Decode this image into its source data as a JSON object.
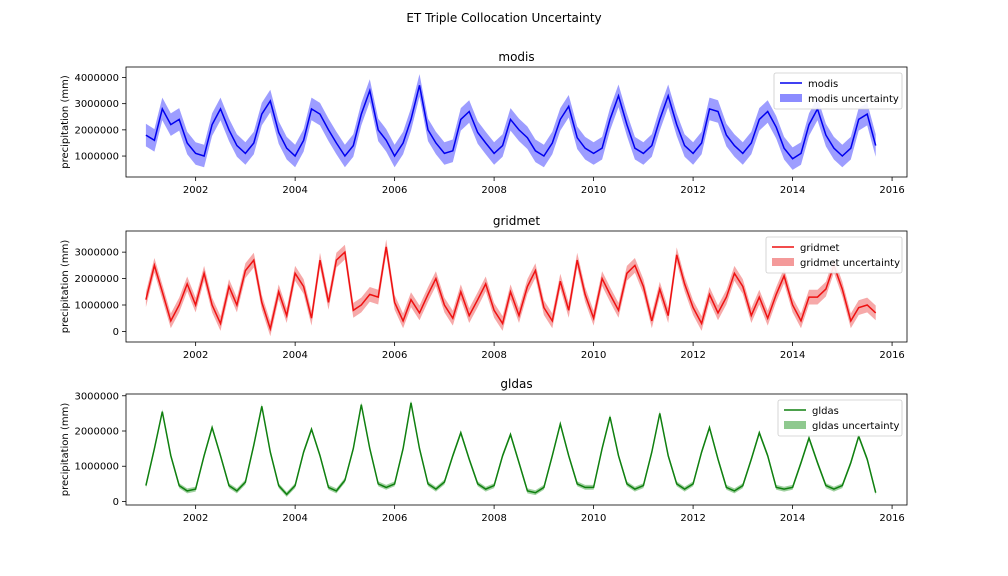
{
  "figure": {
    "title": "ET Triple Collocation Uncertainty"
  },
  "colors": {
    "modis": "#0000ee",
    "modis_band": "#8c8cff",
    "gridmet": "#ee1111",
    "gridmet_band": "#f49a9a",
    "gldas": "#108010",
    "gldas_band": "#8fc98f"
  },
  "chart_data": [
    {
      "type": "line",
      "title": "modis",
      "ylabel": "precipitation (mm)",
      "xlim": [
        2000.6,
        2016.3
      ],
      "ylim": [
        200000,
        4400000
      ],
      "yticks": [
        1000000,
        2000000,
        3000000,
        4000000
      ],
      "ytick_labels": [
        "1000000",
        "2000000",
        "3000000",
        "4000000"
      ],
      "xticks": [
        2002,
        2004,
        2006,
        2008,
        2010,
        2012,
        2014,
        2016
      ],
      "xtick_labels": [
        "2002",
        "2004",
        "2006",
        "2008",
        "2010",
        "2012",
        "2014",
        "2016"
      ],
      "legend": {
        "position": "top-right",
        "line_label": "modis",
        "band_label": "modis uncertainty"
      },
      "series": [
        {
          "name": "modis",
          "x": [
            2001.0,
            2001.17,
            2001.33,
            2001.5,
            2001.67,
            2001.83,
            2002.0,
            2002.17,
            2002.33,
            2002.5,
            2002.67,
            2002.83,
            2003.0,
            2003.17,
            2003.33,
            2003.5,
            2003.67,
            2003.83,
            2004.0,
            2004.17,
            2004.33,
            2004.5,
            2004.67,
            2004.83,
            2005.0,
            2005.17,
            2005.33,
            2005.5,
            2005.67,
            2005.83,
            2006.0,
            2006.17,
            2006.33,
            2006.5,
            2006.67,
            2006.83,
            2007.0,
            2007.17,
            2007.33,
            2007.5,
            2007.67,
            2007.83,
            2008.0,
            2008.17,
            2008.33,
            2008.5,
            2008.67,
            2008.83,
            2009.0,
            2009.17,
            2009.33,
            2009.5,
            2009.67,
            2009.83,
            2010.0,
            2010.17,
            2010.33,
            2010.5,
            2010.67,
            2010.83,
            2011.0,
            2011.17,
            2011.33,
            2011.5,
            2011.67,
            2011.83,
            2012.0,
            2012.17,
            2012.33,
            2012.5,
            2012.67,
            2012.83,
            2013.0,
            2013.17,
            2013.33,
            2013.5,
            2013.67,
            2013.83,
            2014.0,
            2014.17,
            2014.33,
            2014.5,
            2014.67,
            2014.83,
            2015.0,
            2015.17,
            2015.33,
            2015.5,
            2015.67
          ],
          "y": [
            1800000,
            1600000,
            2800000,
            2200000,
            2400000,
            1500000,
            1100000,
            1000000,
            2200000,
            2800000,
            2000000,
            1400000,
            1100000,
            1500000,
            2600000,
            3100000,
            1900000,
            1300000,
            1000000,
            1600000,
            2800000,
            2600000,
            2000000,
            1500000,
            1000000,
            1400000,
            2600000,
            3500000,
            2000000,
            1600000,
            1000000,
            1500000,
            2400000,
            3700000,
            2000000,
            1500000,
            1100000,
            1200000,
            2400000,
            2700000,
            1900000,
            1500000,
            1100000,
            1400000,
            2400000,
            2000000,
            1700000,
            1200000,
            1000000,
            1500000,
            2400000,
            2900000,
            1700000,
            1300000,
            1100000,
            1300000,
            2400000,
            3300000,
            2200000,
            1300000,
            1100000,
            1400000,
            2400000,
            3300000,
            2200000,
            1400000,
            1100000,
            1500000,
            2800000,
            2700000,
            1800000,
            1400000,
            1100000,
            1500000,
            2400000,
            2700000,
            2100000,
            1300000,
            900000,
            1100000,
            2200000,
            2800000,
            1800000,
            1300000,
            1000000,
            1300000,
            2400000,
            2600000,
            1400000
          ],
          "uncertainty": 430000
        }
      ]
    },
    {
      "type": "line",
      "title": "gridmet",
      "ylabel": "precipitation (mm)",
      "xlim": [
        2000.6,
        2016.3
      ],
      "ylim": [
        -400000,
        3800000
      ],
      "yticks": [
        0,
        1000000,
        2000000,
        3000000
      ],
      "ytick_labels": [
        "0",
        "1000000",
        "2000000",
        "3000000"
      ],
      "xticks": [
        2002,
        2004,
        2006,
        2008,
        2010,
        2012,
        2014,
        2016
      ],
      "xtick_labels": [
        "2002",
        "2004",
        "2006",
        "2008",
        "2010",
        "2012",
        "2014",
        "2016"
      ],
      "legend": {
        "position": "top-right",
        "line_label": "gridmet",
        "band_label": "gridmet uncertainty"
      },
      "series": [
        {
          "name": "gridmet",
          "x": [
            2001.0,
            2001.17,
            2001.33,
            2001.5,
            2001.67,
            2001.83,
            2002.0,
            2002.17,
            2002.33,
            2002.5,
            2002.67,
            2002.83,
            2003.0,
            2003.17,
            2003.33,
            2003.5,
            2003.67,
            2003.83,
            2004.0,
            2004.17,
            2004.33,
            2004.5,
            2004.67,
            2004.83,
            2005.0,
            2005.17,
            2005.33,
            2005.5,
            2005.67,
            2005.83,
            2006.0,
            2006.17,
            2006.33,
            2006.5,
            2006.67,
            2006.83,
            2007.0,
            2007.17,
            2007.33,
            2007.5,
            2007.67,
            2007.83,
            2008.0,
            2008.17,
            2008.33,
            2008.5,
            2008.67,
            2008.83,
            2009.0,
            2009.17,
            2009.33,
            2009.5,
            2009.67,
            2009.83,
            2010.0,
            2010.17,
            2010.33,
            2010.5,
            2010.67,
            2010.83,
            2011.0,
            2011.17,
            2011.33,
            2011.5,
            2011.67,
            2011.83,
            2012.0,
            2012.17,
            2012.33,
            2012.5,
            2012.67,
            2012.83,
            2013.0,
            2013.17,
            2013.33,
            2013.5,
            2013.67,
            2013.83,
            2014.0,
            2014.17,
            2014.33,
            2014.5,
            2014.67,
            2014.83,
            2015.0,
            2015.17,
            2015.33,
            2015.5,
            2015.67
          ],
          "y": [
            1200000,
            2500000,
            1500000,
            400000,
            1000000,
            1800000,
            1000000,
            2200000,
            1000000,
            300000,
            1700000,
            1000000,
            2300000,
            2700000,
            1100000,
            100000,
            1500000,
            600000,
            2200000,
            1700000,
            500000,
            2700000,
            1100000,
            2700000,
            3000000,
            800000,
            1000000,
            1400000,
            1300000,
            3200000,
            1100000,
            400000,
            1200000,
            700000,
            1400000,
            2000000,
            1000000,
            500000,
            1500000,
            600000,
            1200000,
            1800000,
            800000,
            300000,
            1500000,
            600000,
            1700000,
            2300000,
            900000,
            400000,
            1900000,
            800000,
            2700000,
            1400000,
            500000,
            2000000,
            1400000,
            800000,
            2200000,
            2500000,
            1700000,
            400000,
            1600000,
            600000,
            2900000,
            1800000,
            900000,
            300000,
            1400000,
            700000,
            1300000,
            2200000,
            1700000,
            600000,
            1300000,
            500000,
            1400000,
            2100000,
            1000000,
            400000,
            1300000,
            1300000,
            1600000,
            2500000,
            1600000,
            400000,
            900000,
            1000000,
            700000
          ],
          "uncertainty": 280000
        }
      ]
    },
    {
      "type": "line",
      "title": "gldas",
      "ylabel": "precipitation (mm)",
      "xlim": [
        2000.6,
        2016.3
      ],
      "ylim": [
        -100000,
        3050000
      ],
      "yticks": [
        0,
        1000000,
        2000000,
        3000000
      ],
      "ytick_labels": [
        "0",
        "1000000",
        "2000000",
        "3000000"
      ],
      "xticks": [
        2002,
        2004,
        2006,
        2008,
        2010,
        2012,
        2014,
        2016
      ],
      "xtick_labels": [
        "2002",
        "2004",
        "2006",
        "2008",
        "2010",
        "2012",
        "2014",
        "2016"
      ],
      "legend": {
        "position": "top-right",
        "line_label": "gldas",
        "band_label": "gldas uncertainty"
      },
      "series": [
        {
          "name": "gldas",
          "x": [
            2001.0,
            2001.17,
            2001.33,
            2001.5,
            2001.67,
            2001.83,
            2002.0,
            2002.17,
            2002.33,
            2002.5,
            2002.67,
            2002.83,
            2003.0,
            2003.17,
            2003.33,
            2003.5,
            2003.67,
            2003.83,
            2004.0,
            2004.17,
            2004.33,
            2004.5,
            2004.67,
            2004.83,
            2005.0,
            2005.17,
            2005.33,
            2005.5,
            2005.67,
            2005.83,
            2006.0,
            2006.17,
            2006.33,
            2006.5,
            2006.67,
            2006.83,
            2007.0,
            2007.17,
            2007.33,
            2007.5,
            2007.67,
            2007.83,
            2008.0,
            2008.17,
            2008.33,
            2008.5,
            2008.67,
            2008.83,
            2009.0,
            2009.17,
            2009.33,
            2009.5,
            2009.67,
            2009.83,
            2010.0,
            2010.17,
            2010.33,
            2010.5,
            2010.67,
            2010.83,
            2011.0,
            2011.17,
            2011.33,
            2011.5,
            2011.67,
            2011.83,
            2012.0,
            2012.17,
            2012.33,
            2012.5,
            2012.67,
            2012.83,
            2013.0,
            2013.17,
            2013.33,
            2013.5,
            2013.67,
            2013.83,
            2014.0,
            2014.17,
            2014.33,
            2014.5,
            2014.67,
            2014.83,
            2015.0,
            2015.17,
            2015.33,
            2015.5,
            2015.67
          ],
          "y": [
            450000,
            1500000,
            2550000,
            1300000,
            450000,
            300000,
            350000,
            1300000,
            2100000,
            1300000,
            450000,
            300000,
            550000,
            1600000,
            2700000,
            1400000,
            450000,
            200000,
            450000,
            1400000,
            2050000,
            1300000,
            400000,
            300000,
            600000,
            1500000,
            2750000,
            1500000,
            500000,
            400000,
            500000,
            1500000,
            2800000,
            1500000,
            500000,
            350000,
            550000,
            1300000,
            1950000,
            1200000,
            500000,
            350000,
            450000,
            1300000,
            1900000,
            1100000,
            300000,
            250000,
            400000,
            1300000,
            2200000,
            1300000,
            500000,
            400000,
            400000,
            1500000,
            2400000,
            1300000,
            500000,
            350000,
            450000,
            1400000,
            2500000,
            1300000,
            500000,
            350000,
            500000,
            1400000,
            2100000,
            1200000,
            400000,
            300000,
            450000,
            1200000,
            1950000,
            1300000,
            400000,
            350000,
            400000,
            1100000,
            1800000,
            1100000,
            450000,
            350000,
            450000,
            1100000,
            1850000,
            1200000,
            250000
          ],
          "uncertainty": 70000
        }
      ]
    }
  ]
}
